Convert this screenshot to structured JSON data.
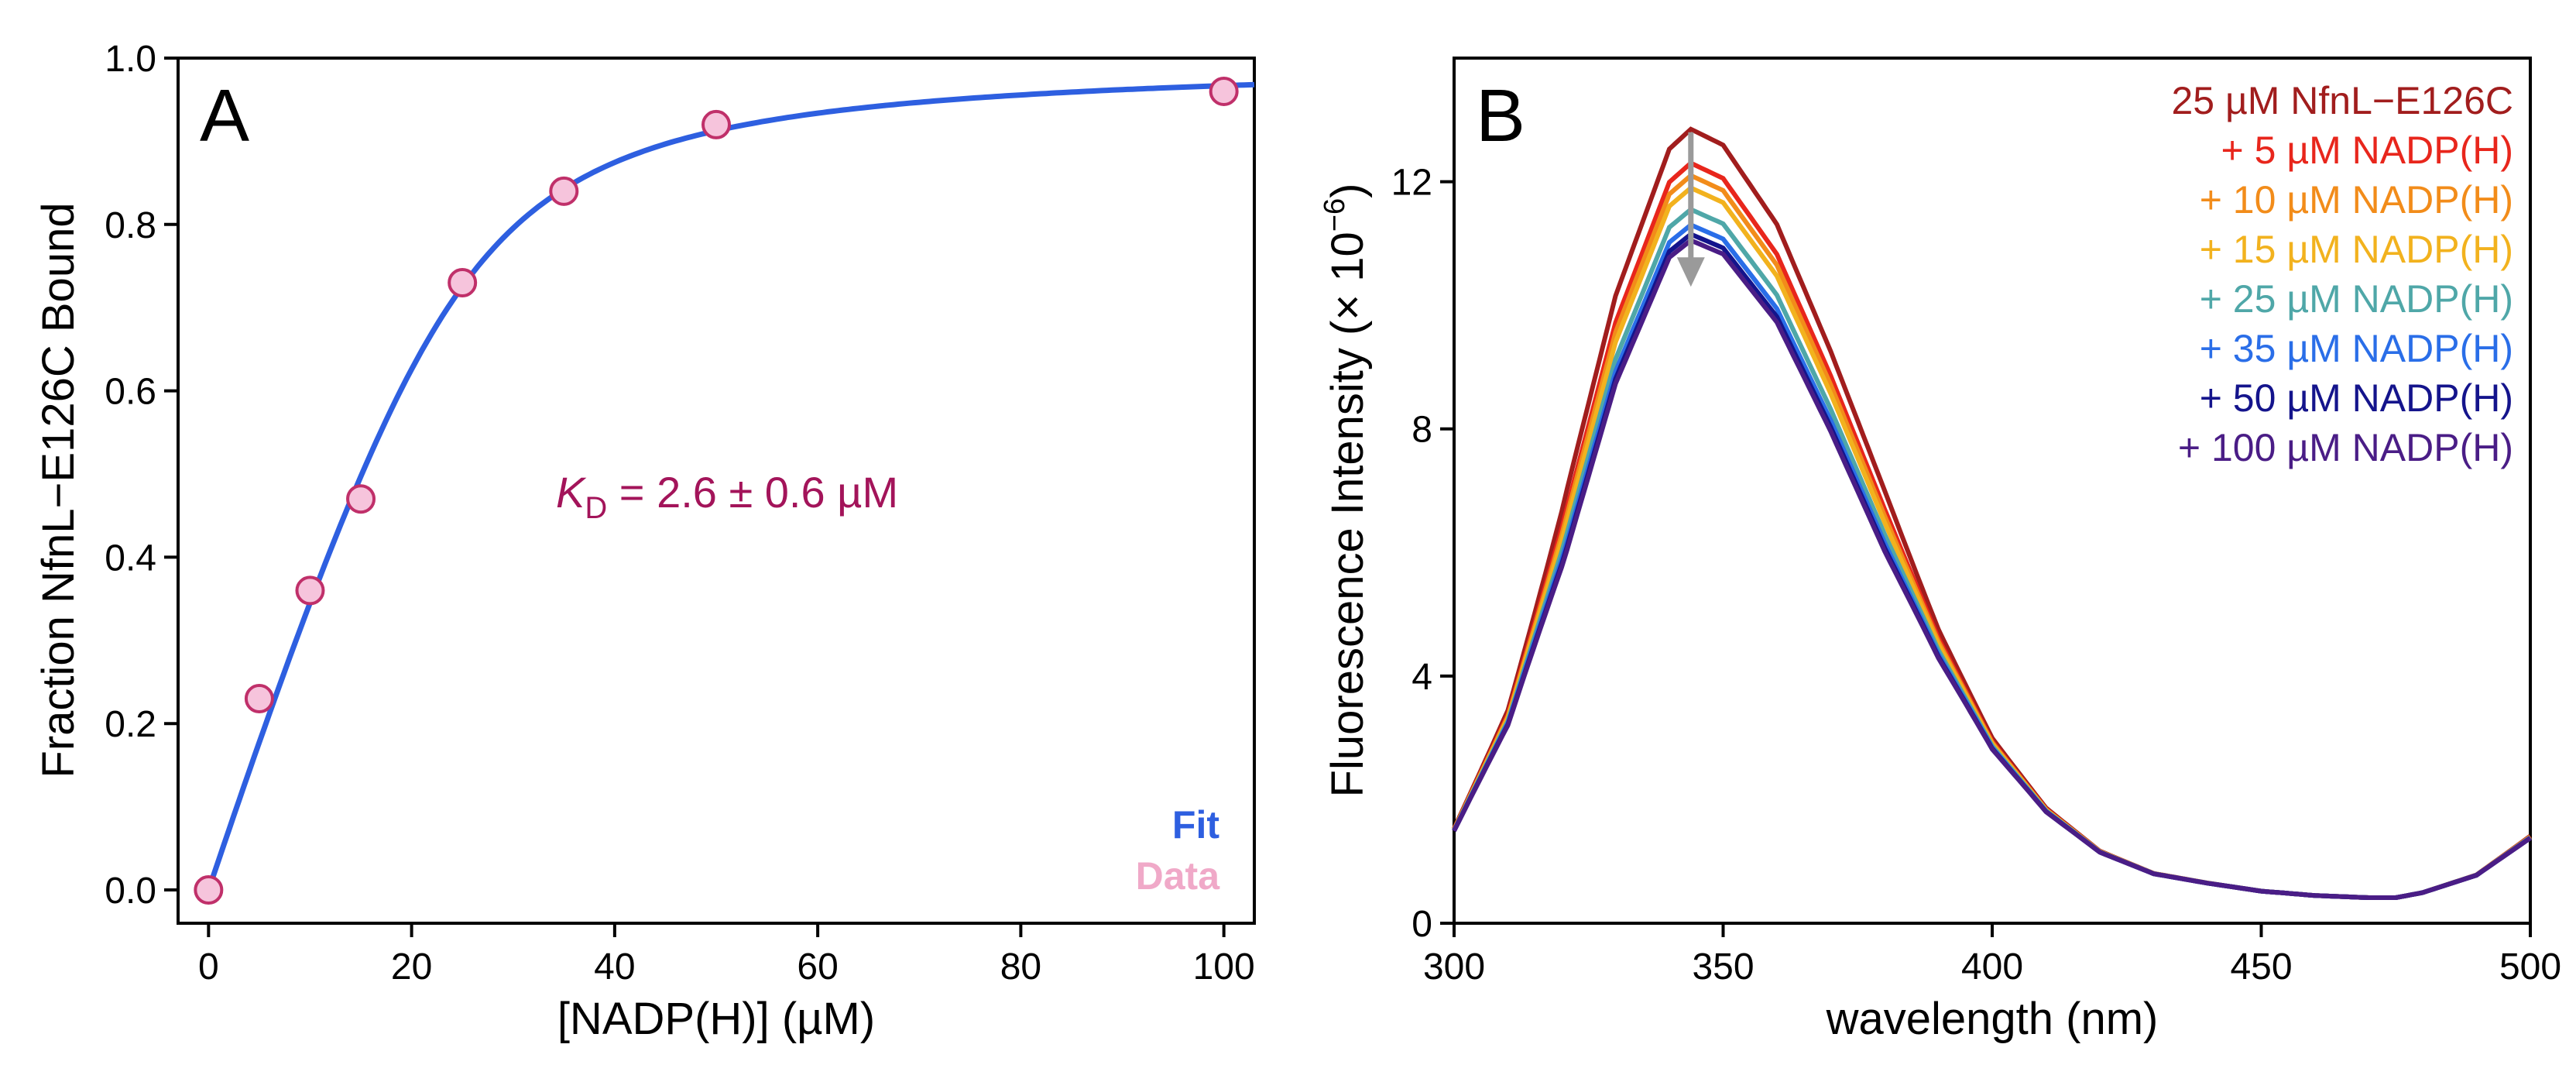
{
  "chart_data": [
    {
      "type": "scatter",
      "panel_label": "A",
      "xlabel": "[NADP(H)] (µM)",
      "ylabel": "Fraction NfnL−E126C Bound",
      "xlim": [
        -3,
        103
      ],
      "ylim": [
        -0.04,
        1.0
      ],
      "xticks": [
        0,
        20,
        40,
        60,
        80,
        100
      ],
      "yticks": [
        0.0,
        0.2,
        0.4,
        0.6,
        0.8,
        1.0
      ],
      "ytick_labels": [
        "0.0",
        "0.2",
        "0.4",
        "0.6",
        "0.8",
        "1.0"
      ],
      "series": [
        {
          "name": "Data",
          "color": "#f6c4dc",
          "edge_color": "#c0306a",
          "x": [
            0,
            5,
            10,
            15,
            25,
            35,
            50,
            100
          ],
          "y": [
            0.0,
            0.23,
            0.36,
            0.47,
            0.73,
            0.84,
            0.92,
            0.96
          ]
        },
        {
          "name": "Fit",
          "color": "#2e5fe0",
          "kd": 2.6,
          "p_total": 25,
          "bmax": 1.0
        }
      ],
      "annotation": {
        "kd_symbol": "K",
        "kd_subscript": "D",
        "kd_text": " = 2.6 ± 0.6 µM",
        "color": "#a3145a"
      },
      "legend": {
        "position": "bottom-right",
        "items": [
          {
            "label": "Fit",
            "color": "#2e5fe0"
          },
          {
            "label": "Data",
            "color": "#f0a9c8"
          }
        ]
      }
    },
    {
      "type": "line",
      "panel_label": "B",
      "xlabel": "wavelength (nm)",
      "ylabel_prefix": "Fluorescence Intensity (× 10",
      "ylabel_exponent": "−6",
      "ylabel_suffix": ")",
      "xlim": [
        300,
        500
      ],
      "ylim": [
        0,
        14
      ],
      "xticks": [
        300,
        350,
        400,
        450,
        500
      ],
      "yticks": [
        0,
        4,
        8,
        12
      ],
      "arrow": {
        "x": 344,
        "y_from": 12.8,
        "y_to": 10.3,
        "color": "#9a9a9a"
      },
      "legend": {
        "position": "top-right"
      },
      "series": [
        {
          "name": "25 µM NfnL−E126C",
          "color": "#a11d1d",
          "peak": 12.85
        },
        {
          "name": "+ 5 µM NADP(H)",
          "color": "#e8261c",
          "peak": 12.3
        },
        {
          "name": "+ 10 µM NADP(H)",
          "color": "#f28c1a",
          "peak": 12.1
        },
        {
          "name": "+ 15 µM NADP(H)",
          "color": "#f2b21e",
          "peak": 11.9
        },
        {
          "name": "+ 25 µM NADP(H)",
          "color": "#4fa7a8",
          "peak": 11.55
        },
        {
          "name": "+ 35 µM NADP(H)",
          "color": "#2a6ee8",
          "peak": 11.3
        },
        {
          "name": "+ 50 µM NADP(H)",
          "color": "#14148c",
          "peak": 11.15
        },
        {
          "name": "+ 100 µM NADP(H)",
          "color": "#4a1d86",
          "peak": 11.05
        }
      ],
      "shape": {
        "x": [
          300,
          310,
          320,
          330,
          340,
          344,
          350,
          360,
          370,
          380,
          390,
          400,
          410,
          420,
          430,
          440,
          450,
          460,
          470,
          475,
          480,
          490,
          500
        ],
        "y_relative": [
          0.128,
          0.28,
          0.52,
          0.79,
          0.975,
          1.0,
          0.98,
          0.88,
          0.72,
          0.545,
          0.38,
          0.245,
          0.155,
          0.098,
          0.068,
          0.055,
          0.044,
          0.038,
          0.035,
          0.035,
          0.042,
          0.066,
          0.118
        ]
      }
    }
  ]
}
